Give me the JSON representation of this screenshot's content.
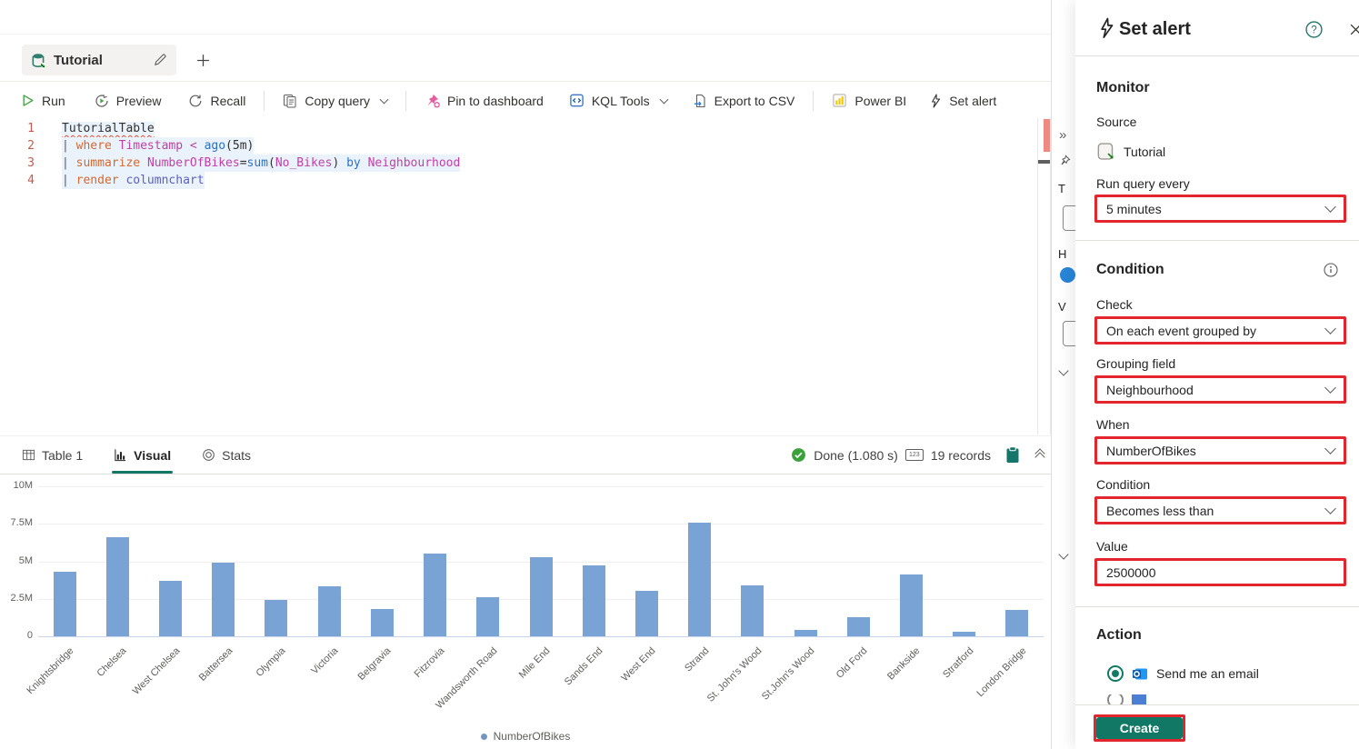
{
  "colors": {
    "accent_teal": "#117865",
    "annotation_red": "#e3262d",
    "bar_blue": "#78a3d4",
    "keyword_orange": "#d7682f",
    "identifier_magenta": "#c33ea8",
    "function_blue": "#2c6fc4"
  },
  "tab_bar": {
    "tab_title": "Tutorial"
  },
  "toolbar": {
    "run": "Run",
    "preview": "Preview",
    "recall": "Recall",
    "copy_query": "Copy query",
    "pin_to_dashboard": "Pin to dashboard",
    "kql_tools": "KQL Tools",
    "export_to_csv": "Export to CSV",
    "power_bi": "Power BI",
    "set_alert": "Set alert"
  },
  "editor": {
    "lines": [
      {
        "num": "1",
        "hl": false,
        "tokens": [
          {
            "t": "TutorialTable",
            "c": "table",
            "squiggle": true,
            "hlword": true
          }
        ]
      },
      {
        "num": "2",
        "hl": true,
        "tokens": [
          {
            "t": "| ",
            "c": "pipe"
          },
          {
            "t": "where",
            "c": "kw"
          },
          {
            "t": " ",
            "c": "pl"
          },
          {
            "t": "Timestamp",
            "c": "col"
          },
          {
            "t": " ",
            "c": "pl"
          },
          {
            "t": "<",
            "c": "op"
          },
          {
            "t": " ",
            "c": "pl"
          },
          {
            "t": "ago",
            "c": "fn"
          },
          {
            "t": "(",
            "c": "pl"
          },
          {
            "t": "5m",
            "c": "lit"
          },
          {
            "t": ")",
            "c": "pl"
          }
        ]
      },
      {
        "num": "3",
        "hl": true,
        "tokens": [
          {
            "t": "| ",
            "c": "pipe"
          },
          {
            "t": "summarize",
            "c": "kw"
          },
          {
            "t": " ",
            "c": "pl"
          },
          {
            "t": "NumberOfBikes",
            "c": "col"
          },
          {
            "t": "=",
            "c": "pl"
          },
          {
            "t": "sum",
            "c": "fn"
          },
          {
            "t": "(",
            "c": "pl"
          },
          {
            "t": "No_Bikes",
            "c": "col"
          },
          {
            "t": ")",
            "c": "pl"
          },
          {
            "t": " ",
            "c": "pl"
          },
          {
            "t": "by",
            "c": "fn"
          },
          {
            "t": " ",
            "c": "pl"
          },
          {
            "t": "Neighbourhood",
            "c": "col"
          }
        ]
      },
      {
        "num": "4",
        "hl": true,
        "tokens": [
          {
            "t": "| ",
            "c": "pipe"
          },
          {
            "t": "render",
            "c": "kw"
          },
          {
            "t": " ",
            "c": "pl"
          },
          {
            "t": "columnchart",
            "c": "render"
          }
        ]
      }
    ]
  },
  "results": {
    "tabs": [
      {
        "label": "Table 1"
      },
      {
        "label": "Visual"
      },
      {
        "label": "Stats"
      }
    ],
    "status": {
      "done": "Done (1.080 s)",
      "records": "19 records"
    }
  },
  "chart_data": {
    "type": "bar",
    "title": "",
    "xlabel": "",
    "ylabel": "",
    "series_name": "NumberOfBikes",
    "categories": [
      "Knightsbridge",
      "Chelsea",
      "West Chelsea",
      "Battersea",
      "Olympia",
      "Victoria",
      "Belgravia",
      "Fitzrovia",
      "Wandsworth Road",
      "Mile End",
      "Sands End",
      "West End",
      "Strand",
      "St. John's Wood",
      "St.John's Wood",
      "Old Ford",
      "Bankside",
      "Stratford",
      "London Bridge"
    ],
    "values": [
      4300000,
      6600000,
      3700000,
      4900000,
      2400000,
      3350000,
      1800000,
      5500000,
      2600000,
      5300000,
      4750000,
      3050000,
      7550000,
      3400000,
      450000,
      1250000,
      4150000,
      300000,
      1750000
    ],
    "y_ticks": [
      "10M",
      "7.5M",
      "5M",
      "2.5M",
      "0"
    ],
    "ylim": [
      0,
      10000000
    ],
    "grid": true,
    "legend_position": "bottom",
    "bar_color": "#78a3d4"
  },
  "strip": {
    "expand": "»",
    "t_label": "T",
    "h_label": "H",
    "v_label": "V"
  },
  "alert_panel": {
    "title": "Set alert",
    "monitor": {
      "heading": "Monitor",
      "source_label": "Source",
      "source_value": "Tutorial",
      "run_every_label": "Run query every",
      "run_every_value": "5 minutes"
    },
    "condition": {
      "heading": "Condition",
      "check_label": "Check",
      "check_value": "On each event grouped by",
      "grouping_label": "Grouping field",
      "grouping_value": "Neighbourhood",
      "when_label": "When",
      "when_value": "NumberOfBikes",
      "condition_label": "Condition",
      "condition_value": "Becomes less than",
      "value_label": "Value",
      "value_input": "2500000"
    },
    "action": {
      "heading": "Action",
      "email_option": "Send me an email"
    },
    "footer": {
      "create_label": "Create"
    }
  },
  "icons": {
    "tab": "database-icon",
    "rename": "pencil-icon",
    "new_tab": "plus-icon",
    "run": "play-icon",
    "preview": "play-circle-icon",
    "recall": "refresh-icon",
    "copy": "copy-icon",
    "pin": "pin-icon",
    "kql": "code-window-icon",
    "export": "export-arrow-icon",
    "powerbi": "powerbi-bars-icon",
    "alert": "lightning-bolt-icon",
    "done": "check-circle-icon",
    "records": "number-badge-icon",
    "clipboard": "clipboard-icon",
    "help": "help-circle-icon",
    "close": "close-icon",
    "info": "info-circle-icon",
    "email": "outlook-icon"
  }
}
